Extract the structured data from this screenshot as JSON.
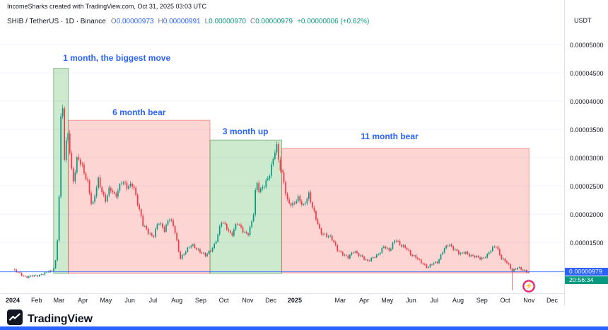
{
  "header": {
    "attribution": "IncomeSharks created with TradingView.com, Oct 31, 2025 03:03 UTC",
    "symbol_line": {
      "title": "SHIB / TetherUS · 1D · Binance",
      "ohlc": [
        {
          "label": "O",
          "value": "0.00000973",
          "color": "#2962ff"
        },
        {
          "label": "H",
          "value": "0.00000991",
          "color": "#2962ff"
        },
        {
          "label": "L",
          "value": "0.00000970",
          "color": "#089981"
        },
        {
          "label": "C",
          "value": "0.00000979",
          "color": "#089981"
        },
        {
          "label": "",
          "value": "+0.00000006 (+0.62%)",
          "color": "#089981"
        }
      ]
    },
    "currency_label": "USDT"
  },
  "chart_data": {
    "type": "candlestick",
    "symbol": "SHIB / TetherUS",
    "interval": "1D",
    "exchange": "Binance",
    "ylim": [
      4.5e-06,
      5e-05
    ],
    "x_range": [
      "2024-01-01",
      "2025-12-31"
    ],
    "grid": "horizontal-faint",
    "colors": {
      "up": "#089981",
      "down": "#f23645"
    },
    "y_axis": {
      "ticks": [
        {
          "label": "0.00005000",
          "value": 5e-05
        },
        {
          "label": "0.00004500",
          "value": 4.5e-05
        },
        {
          "label": "0.00004000",
          "value": 4e-05
        },
        {
          "label": "0.00003500",
          "value": 3.5e-05
        },
        {
          "label": "0.00003000",
          "value": 3e-05
        },
        {
          "label": "0.00002500",
          "value": 2.5e-05
        },
        {
          "label": "0.00002000",
          "value": 2e-05
        },
        {
          "label": "0.00001500",
          "value": 1.5e-05
        }
      ]
    },
    "x_axis": {
      "ticks": [
        {
          "label": "2024",
          "date": "2024-01-01",
          "bold": true
        },
        {
          "label": "Feb",
          "date": "2024-02-01"
        },
        {
          "label": "Mar",
          "date": "2024-03-01"
        },
        {
          "label": "Apr",
          "date": "2024-04-01"
        },
        {
          "label": "May",
          "date": "2024-05-01"
        },
        {
          "label": "Jun",
          "date": "2024-06-01"
        },
        {
          "label": "Jul",
          "date": "2024-07-01"
        },
        {
          "label": "Aug",
          "date": "2024-08-01"
        },
        {
          "label": "Sep",
          "date": "2024-09-01"
        },
        {
          "label": "Oct",
          "date": "2024-10-01"
        },
        {
          "label": "Nov",
          "date": "2024-11-01"
        },
        {
          "label": "Dec",
          "date": "2024-12-01"
        },
        {
          "label": "2025",
          "date": "2025-01-01",
          "bold": true
        },
        {
          "label": "Mar",
          "date": "2025-03-01"
        },
        {
          "label": "Apr",
          "date": "2025-04-01"
        },
        {
          "label": "May",
          "date": "2025-05-01"
        },
        {
          "label": "Jun",
          "date": "2025-06-01"
        },
        {
          "label": "Jul",
          "date": "2025-07-01"
        },
        {
          "label": "Aug",
          "date": "2025-08-01"
        },
        {
          "label": "Sep",
          "date": "2025-09-01"
        },
        {
          "label": "Oct",
          "date": "2025-10-01"
        },
        {
          "label": "Nov",
          "date": "2025-11-01"
        },
        {
          "label": "Dec",
          "date": "2025-12-01"
        }
      ]
    },
    "series_anchors": [
      [
        "2024-01-01",
        1.02e-05
      ],
      [
        "2024-01-08",
        9.6e-06
      ],
      [
        "2024-01-18",
        8.9e-06
      ],
      [
        "2024-02-01",
        9.1e-06
      ],
      [
        "2024-02-12",
        9.6e-06
      ],
      [
        "2024-02-22",
        1e-05
      ],
      [
        "2024-02-27",
        1.25e-05
      ],
      [
        "2024-03-01",
        2.25e-05
      ],
      [
        "2024-03-05",
        4.52e-05
      ],
      [
        "2024-03-07",
        2.85e-05
      ],
      [
        "2024-03-11",
        3.3e-05
      ],
      [
        "2024-03-13",
        3.45e-05
      ],
      [
        "2024-03-19",
        2.55e-05
      ],
      [
        "2024-03-25",
        3e-05
      ],
      [
        "2024-04-01",
        2.8e-05
      ],
      [
        "2024-04-08",
        2.55e-05
      ],
      [
        "2024-04-13",
        2.1e-05
      ],
      [
        "2024-04-21",
        2.6e-05
      ],
      [
        "2024-04-30",
        2.25e-05
      ],
      [
        "2024-05-06",
        2.45e-05
      ],
      [
        "2024-05-13",
        2.3e-05
      ],
      [
        "2024-05-21",
        2.6e-05
      ],
      [
        "2024-05-29",
        2.45e-05
      ],
      [
        "2024-06-05",
        2.55e-05
      ],
      [
        "2024-06-12",
        2.15e-05
      ],
      [
        "2024-06-18",
        1.8e-05
      ],
      [
        "2024-06-24",
        1.7e-05
      ],
      [
        "2024-07-01",
        1.6e-05
      ],
      [
        "2024-07-08",
        1.85e-05
      ],
      [
        "2024-07-16",
        1.72e-05
      ],
      [
        "2024-07-22",
        1.96e-05
      ],
      [
        "2024-07-29",
        1.72e-05
      ],
      [
        "2024-08-05",
        1.22e-05
      ],
      [
        "2024-08-12",
        1.34e-05
      ],
      [
        "2024-08-20",
        1.45e-05
      ],
      [
        "2024-08-26",
        1.4e-05
      ],
      [
        "2024-09-02",
        1.32e-05
      ],
      [
        "2024-09-07",
        1.26e-05
      ],
      [
        "2024-09-13",
        1.34e-05
      ],
      [
        "2024-09-20",
        1.5e-05
      ],
      [
        "2024-09-28",
        1.86e-05
      ],
      [
        "2024-10-05",
        1.76e-05
      ],
      [
        "2024-10-11",
        1.63e-05
      ],
      [
        "2024-10-18",
        1.84e-05
      ],
      [
        "2024-10-25",
        1.72e-05
      ],
      [
        "2024-11-01",
        1.64e-05
      ],
      [
        "2024-11-08",
        1.92e-05
      ],
      [
        "2024-11-12",
        2.58e-05
      ],
      [
        "2024-11-16",
        2.42e-05
      ],
      [
        "2024-11-22",
        2.52e-05
      ],
      [
        "2024-11-28",
        2.62e-05
      ],
      [
        "2024-12-03",
        2.9e-05
      ],
      [
        "2024-12-08",
        3.28e-05
      ],
      [
        "2024-12-12",
        2.88e-05
      ],
      [
        "2024-12-17",
        2.62e-05
      ],
      [
        "2024-12-22",
        2.22e-05
      ],
      [
        "2024-12-29",
        2.18e-05
      ],
      [
        "2025-01-05",
        2.28e-05
      ],
      [
        "2025-01-12",
        2.12e-05
      ],
      [
        "2025-01-19",
        2.38e-05
      ],
      [
        "2025-01-26",
        2.02e-05
      ],
      [
        "2025-02-03",
        1.68e-05
      ],
      [
        "2025-02-10",
        1.64e-05
      ],
      [
        "2025-02-17",
        1.58e-05
      ],
      [
        "2025-02-25",
        1.38e-05
      ],
      [
        "2025-03-04",
        1.3e-05
      ],
      [
        "2025-03-11",
        1.22e-05
      ],
      [
        "2025-03-19",
        1.36e-05
      ],
      [
        "2025-03-27",
        1.26e-05
      ],
      [
        "2025-04-05",
        1.16e-05
      ],
      [
        "2025-04-12",
        1.24e-05
      ],
      [
        "2025-04-20",
        1.28e-05
      ],
      [
        "2025-04-27",
        1.44e-05
      ],
      [
        "2025-05-04",
        1.36e-05
      ],
      [
        "2025-05-11",
        1.54e-05
      ],
      [
        "2025-05-18",
        1.46e-05
      ],
      [
        "2025-05-25",
        1.42e-05
      ],
      [
        "2025-06-01",
        1.26e-05
      ],
      [
        "2025-06-08",
        1.24e-05
      ],
      [
        "2025-06-15",
        1.14e-05
      ],
      [
        "2025-06-22",
        1.04e-05
      ],
      [
        "2025-06-29",
        1.14e-05
      ],
      [
        "2025-07-06",
        1.16e-05
      ],
      [
        "2025-07-13",
        1.36e-05
      ],
      [
        "2025-07-20",
        1.48e-05
      ],
      [
        "2025-07-27",
        1.38e-05
      ],
      [
        "2025-08-03",
        1.28e-05
      ],
      [
        "2025-08-10",
        1.34e-05
      ],
      [
        "2025-08-17",
        1.26e-05
      ],
      [
        "2025-08-24",
        1.24e-05
      ],
      [
        "2025-08-31",
        1.22e-05
      ],
      [
        "2025-09-07",
        1.26e-05
      ],
      [
        "2025-09-14",
        1.38e-05
      ],
      [
        "2025-09-19",
        1.46e-05
      ],
      [
        "2025-09-26",
        1.22e-05
      ],
      [
        "2025-10-03",
        1.14e-05
      ],
      [
        "2025-10-10",
        1e-05
      ],
      [
        "2025-10-17",
        1.06e-05
      ],
      [
        "2025-10-24",
        1e-05
      ],
      [
        "2025-10-31",
        9.8e-06
      ]
    ],
    "events": {
      "flash_crash": {
        "date": "2025-10-10",
        "low": 5.2e-06
      }
    },
    "boxes": [
      {
        "name": "one-month-biggest-move",
        "from": "2024-02-23",
        "to": "2024-03-13",
        "price_top": 4.58e-05,
        "price_bottom": 9.5e-06,
        "fill": "#4caf50",
        "border": "#388e3c",
        "fill_opacity": 0.28
      },
      {
        "name": "six-month-bear",
        "from": "2024-03-13",
        "to": "2024-09-13",
        "price_top": 3.66e-05,
        "price_bottom": 9.5e-06,
        "fill": "#f44336",
        "border": "#ef5350",
        "fill_opacity": 0.22
      },
      {
        "name": "three-month-up",
        "from": "2024-09-13",
        "to": "2024-12-15",
        "price_top": 3.31e-05,
        "price_bottom": 9.5e-06,
        "fill": "#4caf50",
        "border": "#388e3c",
        "fill_opacity": 0.28
      },
      {
        "name": "eleven-month-bear",
        "from": "2024-12-15",
        "to": "2025-11-01",
        "price_top": 3.16e-05,
        "price_bottom": 9.6e-06,
        "fill": "#f44336",
        "border": "#ef5350",
        "fill_opacity": 0.22
      }
    ],
    "annotations": [
      {
        "name": "label-1-month",
        "text": "1 month, the biggest move",
        "date": "2024-05-15",
        "price": 4.76e-05,
        "color": "#2962ff"
      },
      {
        "name": "label-6-month-bear",
        "text": "6 month bear",
        "date": "2024-06-13",
        "price": 3.8e-05,
        "color": "#2962ff"
      },
      {
        "name": "label-3-month-up",
        "text": "3 month up",
        "date": "2024-10-29",
        "price": 3.46e-05,
        "color": "#2962ff"
      },
      {
        "name": "label-11-month-bear",
        "text": "11 month bear",
        "date": "2025-05-04",
        "price": 3.38e-05,
        "color": "#2962ff"
      }
    ],
    "last_price": {
      "value": 9.79e-06,
      "label": "0.00000979",
      "countdown": "20:56:34",
      "line_color": "#2962ff",
      "badge_color": "#2962ff",
      "countdown_color": "#089981"
    },
    "marker": {
      "emoji": "⚡",
      "date": "2025-11-01",
      "price": 7.2e-06,
      "ring_color": "#e91e63"
    }
  },
  "footer": {
    "brand": "TradingView"
  }
}
